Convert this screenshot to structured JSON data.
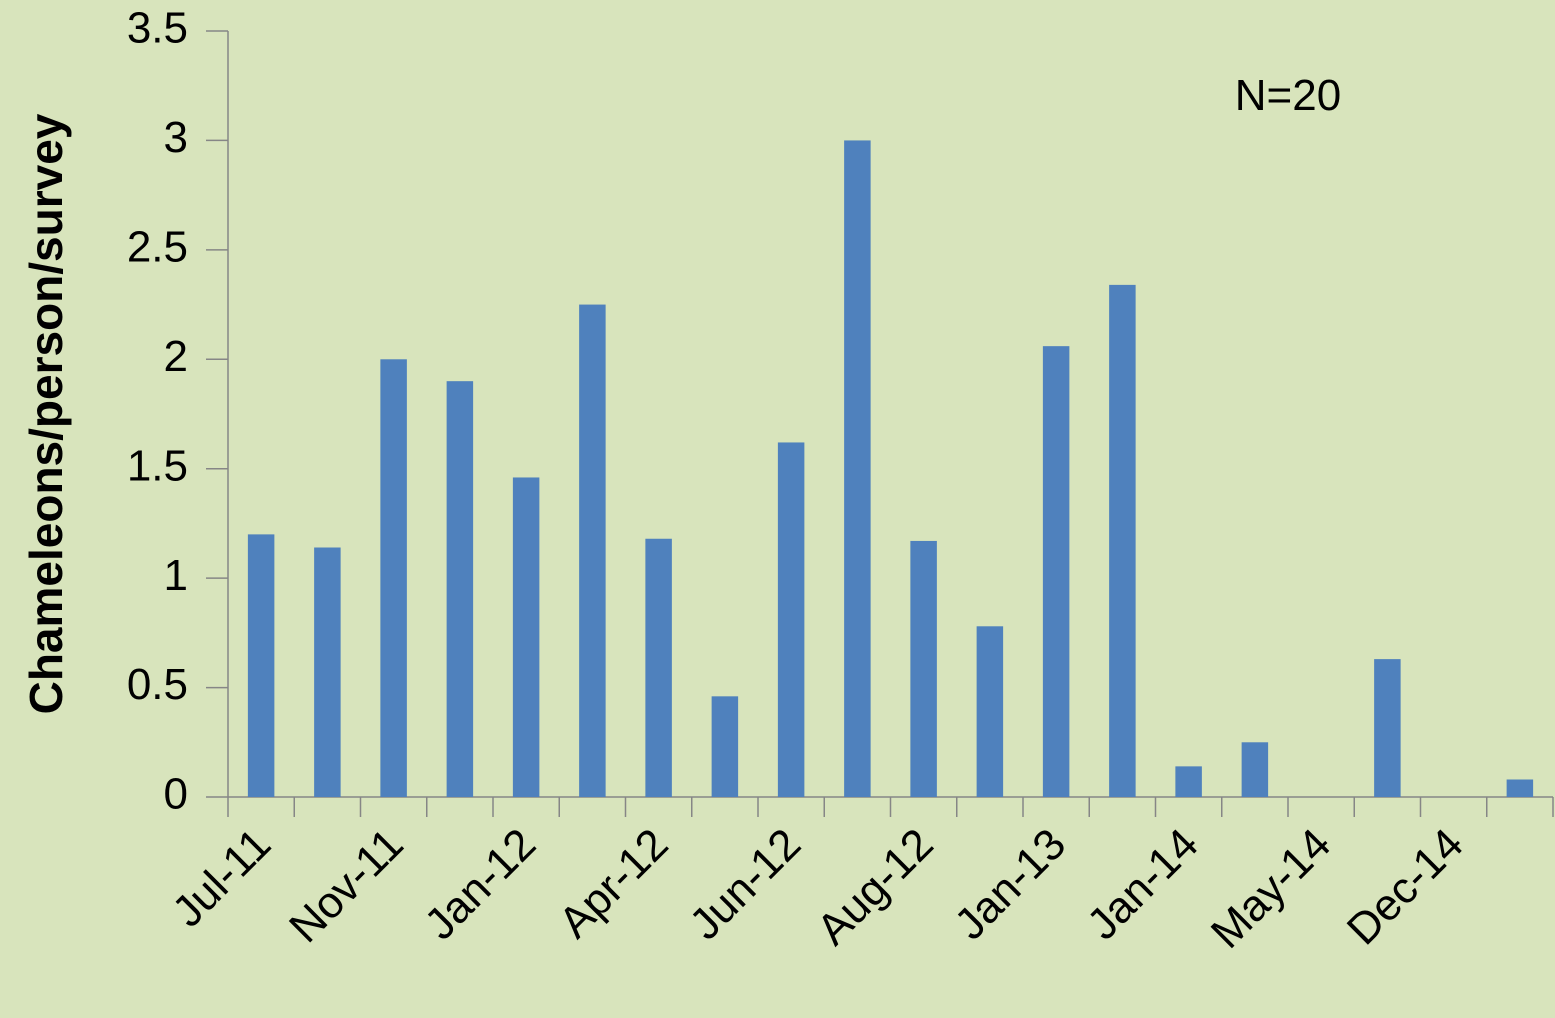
{
  "chart_data": {
    "type": "bar",
    "y_label": "Chameleons/person/survey",
    "annotation": "N=20",
    "categories": [
      "Jul-11",
      null,
      "Nov-11",
      null,
      "Jan-12",
      null,
      "Apr-12",
      null,
      "Jun-12",
      null,
      "Aug-12",
      null,
      "Jan-13",
      null,
      "Jan-14",
      null,
      "May-14",
      null,
      "Dec-14",
      null
    ],
    "values": [
      1.2,
      1.14,
      2.0,
      1.9,
      1.46,
      2.25,
      1.18,
      0.46,
      1.62,
      3.0,
      1.17,
      0.78,
      2.06,
      2.34,
      0.14,
      0.25,
      0,
      0.63,
      0,
      0.08
    ],
    "color": "#4f81bd",
    "ylim": [
      0,
      3.5
    ],
    "yticks": [
      0,
      0.5,
      1,
      1.5,
      2,
      2.5,
      3,
      3.5
    ],
    "grid": false
  }
}
